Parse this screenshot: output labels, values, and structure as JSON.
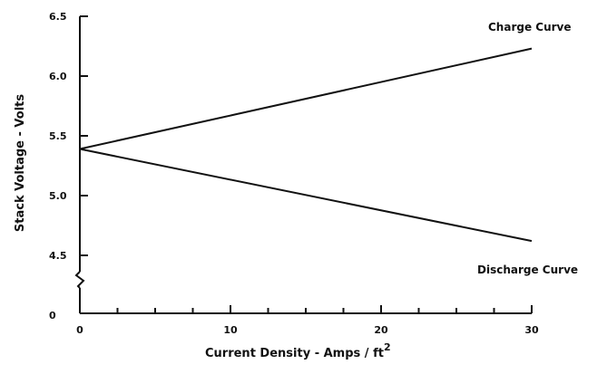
{
  "chart_data": {
    "type": "line",
    "title": "",
    "xlabel": "Current Density - Amps / ft",
    "xlabel_superscript": "2",
    "ylabel": "Stack Voltage - Volts",
    "xlim": [
      0,
      30
    ],
    "ylim": [
      4.0,
      6.5
    ],
    "y_axis_break": true,
    "grid": false,
    "x_ticks": [
      0,
      10,
      20,
      30
    ],
    "x_tick_labels": [
      "0",
      "10",
      "20",
      "30"
    ],
    "x_minor_step": 2.5,
    "y_ticks": [
      4.5,
      5.0,
      5.5,
      6.0,
      6.5
    ],
    "y_tick_labels": [
      "4.5",
      "5.0",
      "5.5",
      "6.0",
      "6.5"
    ],
    "y_bottom_label": "0",
    "series": [
      {
        "name": "Charge Curve",
        "x": [
          0,
          30
        ],
        "y": [
          5.39,
          6.23
        ]
      },
      {
        "name": "Discharge Curve",
        "x": [
          0,
          30
        ],
        "y": [
          5.39,
          4.62
        ]
      }
    ],
    "stroke_color": "#111111"
  }
}
